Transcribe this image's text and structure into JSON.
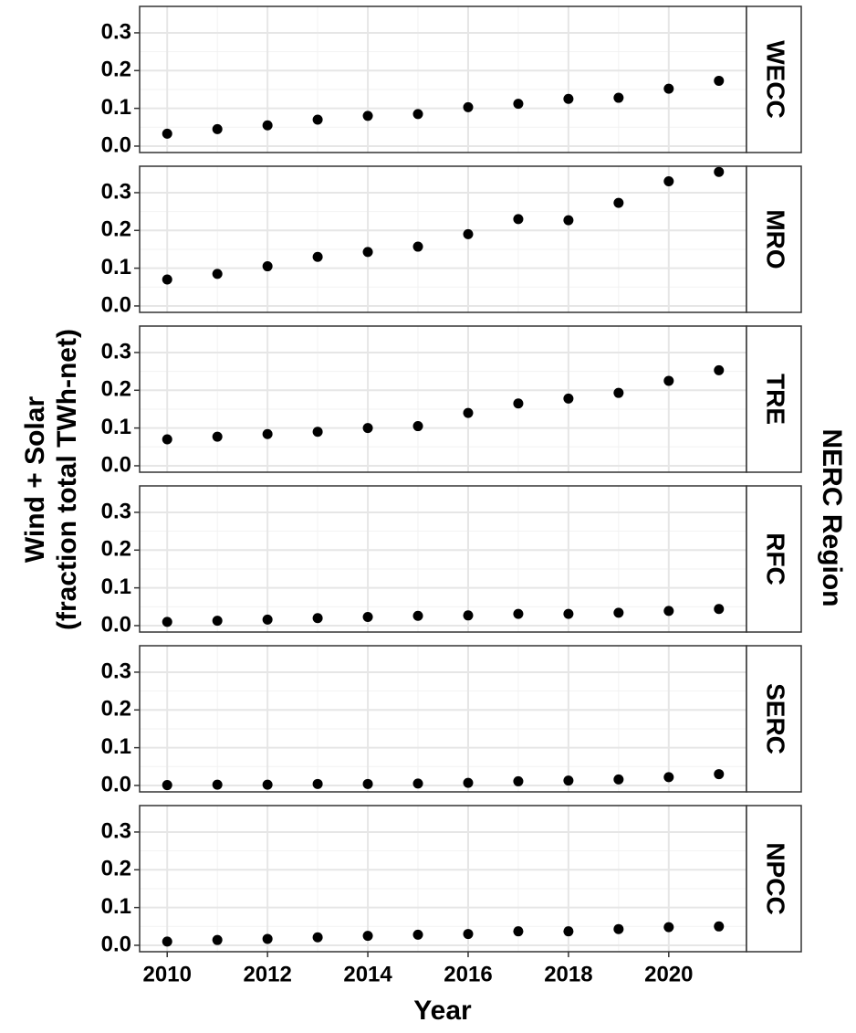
{
  "chart_data": {
    "type": "scatter",
    "xlabel": "Year",
    "ylabel": [
      "Wind + Solar",
      "(fraction total TWh-net)"
    ],
    "facet_label": "NERC Region",
    "x": [
      2010,
      2011,
      2012,
      2013,
      2014,
      2015,
      2016,
      2017,
      2018,
      2019,
      2020,
      2021
    ],
    "xlim": [
      2009.45,
      2021.55
    ],
    "xticks": [
      2010,
      2012,
      2014,
      2016,
      2018,
      2020
    ],
    "ylim": [
      -0.017,
      0.37
    ],
    "yticks": [
      {
        "value": 0,
        "label": "0.0"
      },
      0.1,
      0.2,
      0.3
    ],
    "grid": true,
    "color": "#000000",
    "series": [
      {
        "name": "WECC",
        "values": [
          0.033,
          0.045,
          0.055,
          0.07,
          0.08,
          0.085,
          0.103,
          0.112,
          0.125,
          0.128,
          0.152,
          0.173
        ]
      },
      {
        "name": "MRO",
        "values": [
          0.07,
          0.085,
          0.105,
          0.13,
          0.143,
          0.157,
          0.19,
          0.23,
          0.227,
          0.273,
          0.33,
          0.355
        ]
      },
      {
        "name": "TRE",
        "values": [
          0.07,
          0.077,
          0.084,
          0.09,
          0.1,
          0.105,
          0.14,
          0.165,
          0.178,
          0.193,
          0.225,
          0.253
        ]
      },
      {
        "name": "RFC",
        "values": [
          0.01,
          0.013,
          0.016,
          0.02,
          0.023,
          0.026,
          0.027,
          0.031,
          0.031,
          0.034,
          0.039,
          0.044
        ]
      },
      {
        "name": "SERC",
        "values": [
          0.001,
          0.002,
          0.002,
          0.004,
          0.004,
          0.005,
          0.007,
          0.011,
          0.013,
          0.016,
          0.022,
          0.03
        ]
      },
      {
        "name": "NPCC",
        "values": [
          0.01,
          0.014,
          0.017,
          0.021,
          0.025,
          0.028,
          0.03,
          0.037,
          0.037,
          0.043,
          0.048,
          0.05
        ]
      }
    ]
  }
}
